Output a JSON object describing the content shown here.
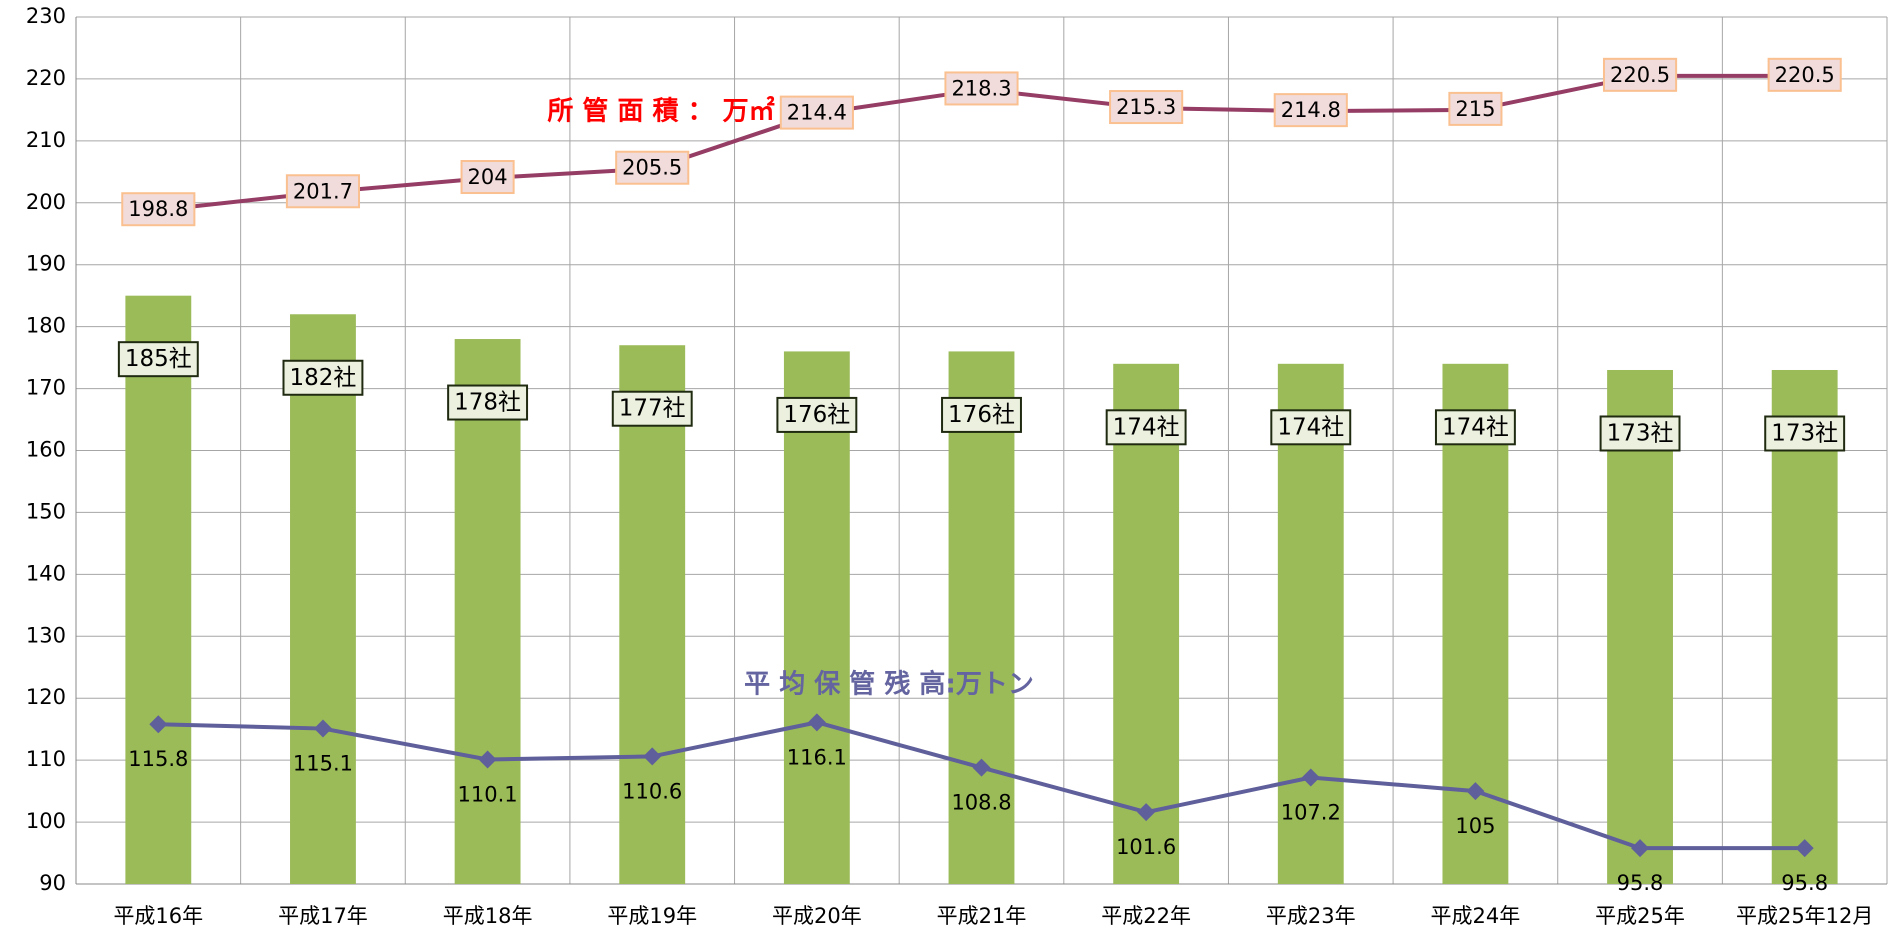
{
  "chart_data": {
    "type": "bar-line",
    "categories": [
      "平成16年",
      "平成17年",
      "平成18年",
      "平成19年",
      "平成20年",
      "平成21年",
      "平成22年",
      "平成23年",
      "平成24年",
      "平成25年",
      "平成25年12月"
    ],
    "series": [
      {
        "type": "bar",
        "color": "#9bbb59",
        "values": [
          185,
          182,
          178,
          177,
          176,
          176,
          174,
          174,
          174,
          173,
          173
        ],
        "value_labels": [
          "185社",
          "182社",
          "178社",
          "177社",
          "176社",
          "176社",
          "174社",
          "174社",
          "174社",
          "173社",
          "173社"
        ]
      },
      {
        "type": "line",
        "name": "所 管 面 積 ： 万㎡",
        "color": "#953d64",
        "name_color": "#ff0000",
        "values": [
          198.8,
          201.7,
          204,
          205.5,
          214.4,
          218.3,
          215.3,
          214.8,
          215,
          220.5,
          220.5
        ]
      },
      {
        "type": "line",
        "name": "平 均 保 管 残 高:万トン",
        "color": "#5f5f9b",
        "name_color": "#6464a0",
        "marker": "diamond",
        "values": [
          115.8,
          115.1,
          110.1,
          110.6,
          116.1,
          108.8,
          101.6,
          107.2,
          105,
          95.8,
          95.8
        ]
      }
    ],
    "ylim": [
      90,
      230
    ],
    "yticks": [
      90,
      100,
      110,
      120,
      130,
      140,
      150,
      160,
      170,
      180,
      190,
      200,
      210,
      220,
      230
    ],
    "grid": true
  }
}
